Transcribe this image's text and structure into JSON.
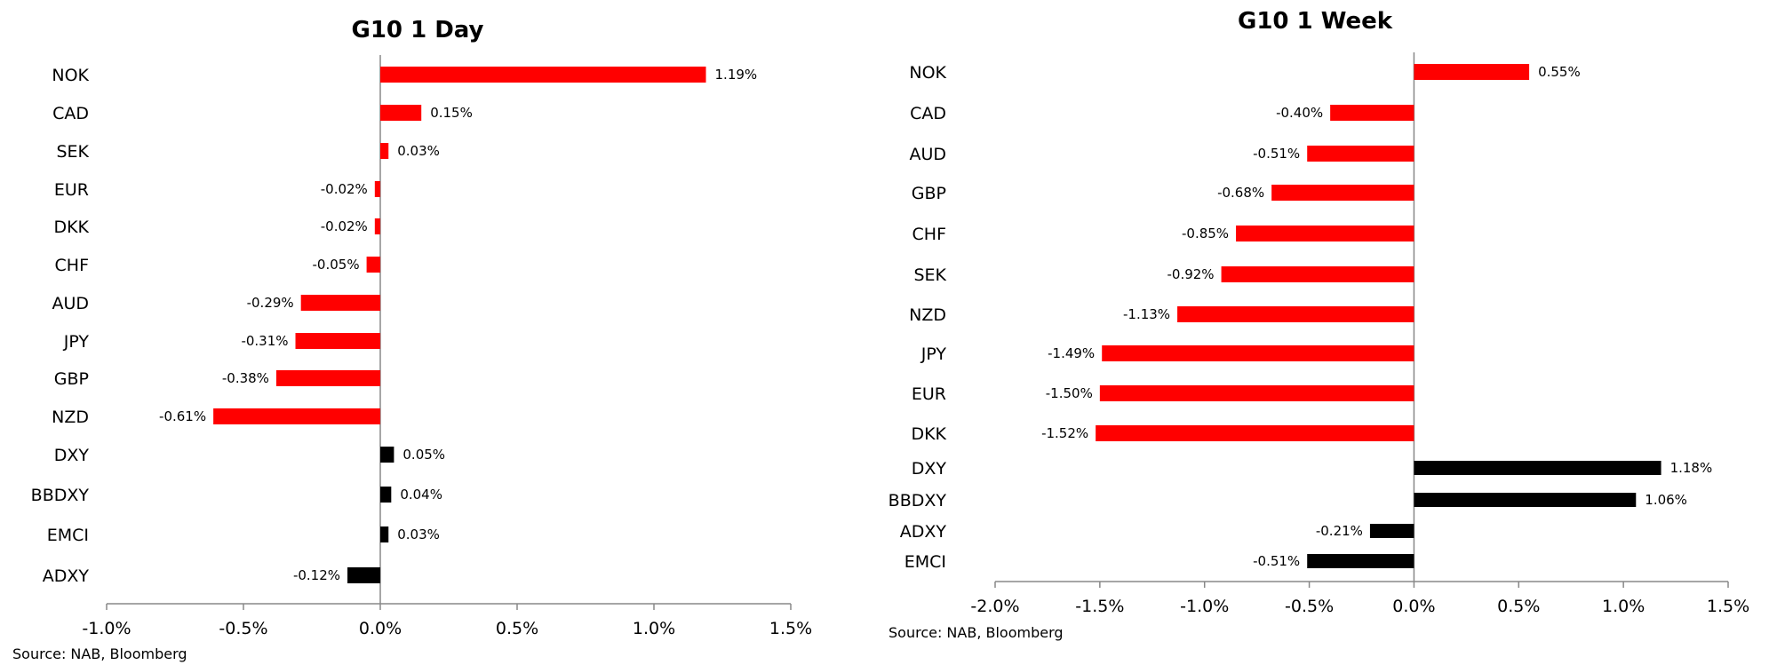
{
  "chart_data": [
    {
      "type": "bar",
      "orientation": "horizontal",
      "title": "G10 1 Day",
      "categories": [
        "NOK",
        "CAD",
        "SEK",
        "EUR",
        "DKK",
        "CHF",
        "AUD",
        "JPY",
        "GBP",
        "NZD",
        "DXY",
        "BBDXY",
        "EMCI",
        "ADXY"
      ],
      "values": [
        1.19,
        0.15,
        0.03,
        -0.02,
        -0.02,
        -0.05,
        -0.29,
        -0.31,
        -0.38,
        -0.61,
        0.05,
        0.04,
        0.03,
        -0.12
      ],
      "data_labels": [
        "1.19%",
        "0.15%",
        "0.03%",
        "-0.02%",
        "-0.02%",
        "-0.05%",
        "-0.29%",
        "-0.31%",
        "-0.38%",
        "-0.61%",
        "0.05%",
        "0.04%",
        "0.03%",
        "-0.12%"
      ],
      "bar_colors": [
        "#ff0000",
        "#ff0000",
        "#ff0000",
        "#ff0000",
        "#ff0000",
        "#ff0000",
        "#ff0000",
        "#ff0000",
        "#ff0000",
        "#ff0000",
        "#000000",
        "#000000",
        "#000000",
        "#000000"
      ],
      "xlim": [
        -1.0,
        1.5
      ],
      "xticks": [
        -1.0,
        -0.5,
        0.0,
        0.5,
        1.0,
        1.5
      ],
      "xtick_labels": [
        "-1.0%",
        "-0.5%",
        "0.0%",
        "0.5%",
        "1.0%",
        "1.5%"
      ],
      "xlabel": "",
      "ylabel": "",
      "grid": false,
      "source": "Source: NAB, Bloomberg"
    },
    {
      "type": "bar",
      "orientation": "horizontal",
      "title": "G10 1 Week",
      "categories": [
        "NOK",
        "CAD",
        "AUD",
        "GBP",
        "CHF",
        "SEK",
        "NZD",
        "JPY",
        "EUR",
        "DKK",
        "DXY",
        "BBDXY",
        "ADXY",
        "EMCI"
      ],
      "values": [
        0.55,
        -0.4,
        -0.51,
        -0.68,
        -0.85,
        -0.92,
        -1.13,
        -1.49,
        -1.5,
        -1.52,
        1.18,
        1.06,
        -0.21,
        -0.51
      ],
      "data_labels": [
        "0.55%",
        "-0.40%",
        "-0.51%",
        "-0.68%",
        "-0.85%",
        "-0.92%",
        "-1.13%",
        "-1.49%",
        "-1.50%",
        "-1.52%",
        "1.18%",
        "1.06%",
        "-0.21%",
        "-0.51%"
      ],
      "bar_colors": [
        "#ff0000",
        "#ff0000",
        "#ff0000",
        "#ff0000",
        "#ff0000",
        "#ff0000",
        "#ff0000",
        "#ff0000",
        "#ff0000",
        "#ff0000",
        "#000000",
        "#000000",
        "#000000",
        "#000000"
      ],
      "xlim": [
        -2.0,
        1.5
      ],
      "xticks": [
        -2.0,
        -1.5,
        -1.0,
        -0.5,
        0.0,
        0.5,
        1.0,
        1.5
      ],
      "xtick_labels": [
        "-2.0%",
        "-1.5%",
        "-1.0%",
        "-0.5%",
        "0.0%",
        "0.5%",
        "1.0%",
        "1.5%"
      ],
      "xlabel": "",
      "ylabel": "",
      "grid": false,
      "source": "Source: NAB, Bloomberg"
    }
  ]
}
